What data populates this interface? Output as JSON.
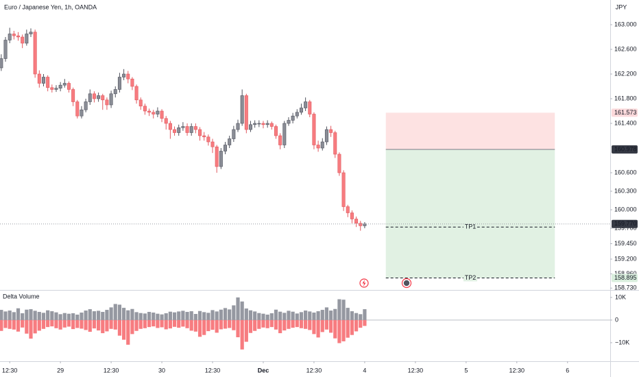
{
  "chart_data": {
    "type": "candlestick",
    "title": "Euro / Japanese Yen, 1h, OANDA",
    "currency": "JPY",
    "up_color": "#8a8d96",
    "down_color": "#f77c80",
    "x": [
      -14,
      -13,
      -12,
      -11,
      -10,
      -9,
      -8,
      -7,
      -6,
      -5,
      -4,
      -3,
      -2,
      -1,
      0,
      1,
      2,
      3,
      4,
      5,
      6,
      7,
      8,
      9,
      10,
      11,
      12,
      13,
      14,
      15,
      16,
      17,
      18,
      19,
      20,
      21,
      22,
      23,
      24,
      25,
      26,
      27,
      28,
      29,
      30,
      31,
      32,
      33,
      34,
      35,
      36,
      37,
      38,
      39,
      40,
      41,
      42,
      43,
      44,
      45,
      46,
      47,
      48,
      49,
      50,
      51,
      52,
      53,
      54,
      55,
      56,
      57,
      58,
      59,
      60,
      61,
      62,
      63,
      64,
      65,
      66,
      67,
      68,
      69,
      70,
      71,
      72
    ],
    "open": [
      162.3,
      162.45,
      162.75,
      162.85,
      162.82,
      162.8,
      162.7,
      162.85,
      162.88,
      162.2,
      162.05,
      162.15,
      161.98,
      161.95,
      161.97,
      162.02,
      162.05,
      161.95,
      161.75,
      161.52,
      161.62,
      161.75,
      161.88,
      161.8,
      161.85,
      161.78,
      161.7,
      161.88,
      161.95,
      162.15,
      162.2,
      162.12,
      162.0,
      161.78,
      161.68,
      161.6,
      161.58,
      161.55,
      161.6,
      161.48,
      161.4,
      161.3,
      161.25,
      161.33,
      161.35,
      161.25,
      161.35,
      161.3,
      161.2,
      161.18,
      161.1,
      161.02,
      160.7,
      160.95,
      161.05,
      161.15,
      161.3,
      161.4,
      161.85,
      161.3,
      161.38,
      161.4,
      161.4,
      161.38,
      161.4,
      161.35,
      161.2,
      161.05,
      161.4,
      161.45,
      161.52,
      161.58,
      161.65,
      161.75,
      161.55,
      161.05,
      161.0,
      161.1,
      161.3,
      161.25,
      160.9,
      160.6,
      160.05,
      159.95,
      159.85,
      159.78,
      159.74
    ],
    "high": [
      162.52,
      162.8,
      162.95,
      162.9,
      162.88,
      162.84,
      162.92,
      162.94,
      162.92,
      162.26,
      162.2,
      162.18,
      162.03,
      162.02,
      162.07,
      162.12,
      162.08,
      161.98,
      161.78,
      161.68,
      161.8,
      161.95,
      161.92,
      161.9,
      161.88,
      161.82,
      161.93,
      162.0,
      162.22,
      162.28,
      162.25,
      162.15,
      162.03,
      161.82,
      161.72,
      161.64,
      161.62,
      161.66,
      161.63,
      161.52,
      161.44,
      161.35,
      161.38,
      161.42,
      161.4,
      161.4,
      161.4,
      161.34,
      161.26,
      161.22,
      161.15,
      161.05,
      161.0,
      161.1,
      161.2,
      161.36,
      161.46,
      161.95,
      161.88,
      161.44,
      161.45,
      161.45,
      161.44,
      161.45,
      161.43,
      161.38,
      161.24,
      161.44,
      161.5,
      161.57,
      161.63,
      161.72,
      161.82,
      161.78,
      161.58,
      161.12,
      161.16,
      161.35,
      161.36,
      161.28,
      160.93,
      160.64,
      160.08,
      159.99,
      159.89,
      159.82,
      159.8
    ],
    "low": [
      162.25,
      162.4,
      162.7,
      162.76,
      162.74,
      162.62,
      162.66,
      162.8,
      162.14,
      161.98,
      162.0,
      161.92,
      161.9,
      161.91,
      161.92,
      161.98,
      161.9,
      161.68,
      161.48,
      161.48,
      161.58,
      161.7,
      161.74,
      161.75,
      161.62,
      161.62,
      161.65,
      161.82,
      161.9,
      162.1,
      162.05,
      161.94,
      161.72,
      161.62,
      161.54,
      161.52,
      161.48,
      161.5,
      161.42,
      161.3,
      161.15,
      161.2,
      161.2,
      161.28,
      161.2,
      161.2,
      161.24,
      161.12,
      161.12,
      161.04,
      160.92,
      160.6,
      160.66,
      160.9,
      161.0,
      161.1,
      161.26,
      161.36,
      161.24,
      161.26,
      161.33,
      161.34,
      161.32,
      161.33,
      161.3,
      161.15,
      160.98,
      161.0,
      161.36,
      161.4,
      161.48,
      161.54,
      161.6,
      161.5,
      160.98,
      160.94,
      160.96,
      161.05,
      161.18,
      160.84,
      160.55,
      159.98,
      159.88,
      159.78,
      159.72,
      159.66,
      159.7
    ],
    "close": [
      162.45,
      162.75,
      162.85,
      162.82,
      162.8,
      162.7,
      162.85,
      162.88,
      162.2,
      162.05,
      162.15,
      161.98,
      161.95,
      161.97,
      162.02,
      162.05,
      161.95,
      161.75,
      161.52,
      161.62,
      161.75,
      161.88,
      161.8,
      161.85,
      161.78,
      161.7,
      161.88,
      161.95,
      162.15,
      162.2,
      162.12,
      162.0,
      161.78,
      161.68,
      161.6,
      161.58,
      161.55,
      161.6,
      161.48,
      161.4,
      161.3,
      161.25,
      161.33,
      161.35,
      161.25,
      161.35,
      161.3,
      161.2,
      161.18,
      161.1,
      161.02,
      160.7,
      160.95,
      161.05,
      161.15,
      161.3,
      161.4,
      161.85,
      161.3,
      161.38,
      161.4,
      161.4,
      161.38,
      161.4,
      161.35,
      161.2,
      161.05,
      161.4,
      161.45,
      161.52,
      161.58,
      161.65,
      161.75,
      161.55,
      161.05,
      161.0,
      161.1,
      161.3,
      161.25,
      160.9,
      160.6,
      160.05,
      159.95,
      159.85,
      159.78,
      159.74,
      159.77
    ],
    "xlim": [
      -14.3,
      130.1
    ],
    "xticks": [
      {
        "value": -12,
        "label": "12:30"
      },
      {
        "value": 0,
        "label": "29"
      },
      {
        "value": 12,
        "label": "12:30"
      },
      {
        "value": 24,
        "label": "30"
      },
      {
        "value": 36,
        "label": "12:30"
      },
      {
        "value": 48,
        "label": "Dec"
      },
      {
        "value": 60,
        "label": "12:30"
      },
      {
        "value": 72,
        "label": "4"
      },
      {
        "value": 84,
        "label": "12:30"
      },
      {
        "value": 96,
        "label": "5"
      },
      {
        "value": 108,
        "label": "12:30"
      },
      {
        "value": 120,
        "label": "6"
      }
    ],
    "ylim": [
      158.7,
      163.4
    ],
    "yticks": [
      {
        "value": 163,
        "label": "163.000"
      },
      {
        "value": 162.6,
        "label": "162.600"
      },
      {
        "value": 162.2,
        "label": "162.200"
      },
      {
        "value": 161.8,
        "label": "161.800"
      },
      {
        "value": 161.4,
        "label": "161.400"
      },
      {
        "value": 160.6,
        "label": "160.600"
      },
      {
        "value": 160.3,
        "label": "160.300"
      },
      {
        "value": 160,
        "label": "160.000"
      },
      {
        "value": 159.7,
        "label": "159.700"
      },
      {
        "value": 159.45,
        "label": "159.450"
      },
      {
        "value": 159.2,
        "label": "159.200"
      },
      {
        "value": 158.96,
        "label": "158.960"
      },
      {
        "value": 158.73,
        "label": "158.730"
      }
    ],
    "price_labels": [
      {
        "value": 161.573,
        "label": "161.573",
        "color": "#fbd9db",
        "text_color": "#131722"
      },
      {
        "value": 160.978,
        "label": "160.978",
        "color": "#363a45",
        "text_color": "#ffffff"
      },
      {
        "value": 159.77,
        "label": "159.770",
        "color": "#363a45",
        "text_color": "#ffffff",
        "line": true
      },
      {
        "value": 158.895,
        "label": "158.895",
        "color": "#d9eedd",
        "text_color": "#131722"
      }
    ],
    "position": {
      "x": [
        77,
        117
      ],
      "stop": 161.573,
      "entry": 160.978,
      "stop_color": "#fde2e2",
      "target_color": "#e1f1e3",
      "targets": [
        {
          "value": 159.72,
          "label": "TP1"
        },
        {
          "value": 158.895,
          "label": "TP2"
        }
      ]
    },
    "indicator": {
      "type": "bar",
      "title": "Delta Volume",
      "ylim": [
        -18200,
        13000
      ],
      "yticks": [
        {
          "value": 10000,
          "label": "10K"
        },
        0,
        {
          "value": -10000,
          "label": "−10K"
        }
      ],
      "series": [
        {
          "color": "#9598a1",
          "values": [
            4500,
            3800,
            4200,
            3500,
            5200,
            3000,
            4600,
            4800,
            4100,
            3600,
            3200,
            4300,
            3900,
            3400,
            2600,
            3100,
            2800,
            3000,
            2400,
            3300,
            4200,
            4800,
            3900,
            4100,
            3600,
            4500,
            5600,
            7100,
            6800,
            5400,
            4300,
            4900,
            3500,
            3100,
            2900,
            3600,
            3300,
            2800,
            2500,
            3000,
            3700,
            3400,
            3800,
            4100,
            3600,
            3900,
            2700,
            4000,
            3500,
            3200,
            4400,
            3800,
            4600,
            5300,
            4700,
            6500,
            10000,
            8200,
            5100,
            4300,
            3800,
            3100,
            2800,
            2400,
            3000,
            4600,
            3700,
            3200,
            4100,
            3700,
            2900,
            3500,
            4200,
            3800,
            3300,
            3900,
            4500,
            5600,
            4200,
            4900,
            9200,
            9000,
            5400,
            3900,
            3100,
            2600,
            4800
          ]
        },
        {
          "color": "#f77c80",
          "values": [
            -4800,
            -3500,
            -3900,
            -4200,
            -5100,
            -3300,
            -6000,
            -8200,
            -5900,
            -4700,
            -3900,
            -3100,
            -2800,
            -3600,
            -4200,
            -3300,
            -2900,
            -4000,
            -3500,
            -3800,
            -4400,
            -5200,
            -3700,
            -4600,
            -5800,
            -5000,
            -3900,
            -4200,
            -6900,
            -8700,
            -10900,
            -6200,
            -4800,
            -3900,
            -3600,
            -3100,
            -2800,
            -3500,
            -3200,
            -4100,
            -3700,
            -3000,
            -3400,
            -2900,
            -3600,
            -4700,
            -5100,
            -7400,
            -6600,
            -4900,
            -4300,
            -5600,
            -4100,
            -3800,
            -3500,
            -4500,
            -7600,
            -13000,
            -9600,
            -5700,
            -4800,
            -3900,
            -3300,
            -3600,
            -3100,
            -4200,
            -5800,
            -4600,
            -3900,
            -3400,
            -3100,
            -3600,
            -3900,
            -4400,
            -6200,
            -7700,
            -5300,
            -4200,
            -5600,
            -8100,
            -10200,
            -9400,
            -7800,
            -6600,
            -5000,
            -3400,
            -2600
          ]
        }
      ]
    }
  }
}
